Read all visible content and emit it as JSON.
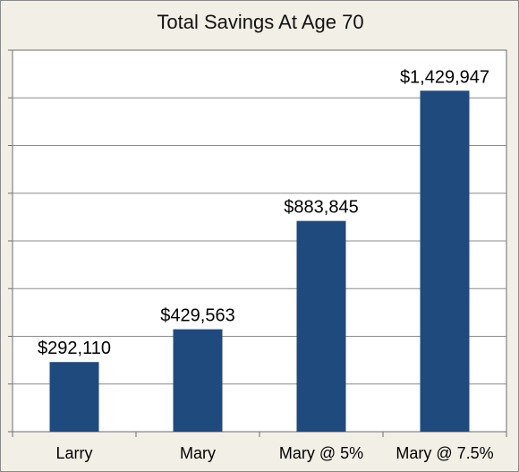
{
  "chart_data": {
    "type": "bar",
    "title": "Total Savings At Age 70",
    "categories": [
      "Larry",
      "Mary",
      "Mary @ 5%",
      "Mary @ 7.5%"
    ],
    "values": [
      292110,
      429563,
      883845,
      1429947
    ],
    "data_labels": [
      "$292,110",
      "$429,563",
      "$883,845",
      "$1,429,947"
    ],
    "xlabel": "",
    "ylabel": "",
    "ylim": [
      0,
      1600000
    ],
    "grid": true,
    "legend": "none",
    "bar_color": "#1f4a7e",
    "background_color": "#f2efe6",
    "plot_background_color": "#ffffff",
    "gridline_color": "#8c8c8c"
  }
}
